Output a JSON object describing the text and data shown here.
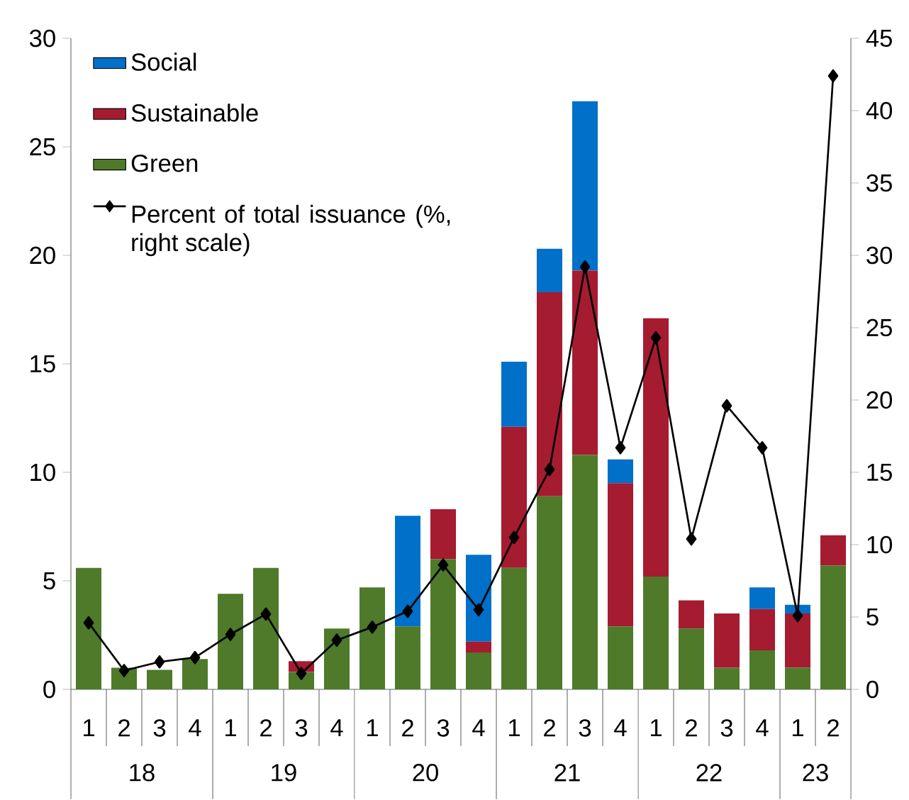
{
  "chart_data": {
    "type": "bar",
    "stacked": true,
    "legend": "top left",
    "marker": "diamond",
    "line_style": "solid",
    "categories": [
      "1",
      "2",
      "3",
      "4",
      "1",
      "2",
      "3",
      "4",
      "1",
      "2",
      "3",
      "4",
      "1",
      "2",
      "3",
      "4",
      "1",
      "2",
      "3",
      "4",
      "1",
      "2"
    ],
    "annotations": [
      "18",
      "19",
      "20",
      "21",
      "22",
      "23"
    ],
    "ylim": [
      0,
      30
    ],
    "yticks": [
      0,
      5,
      10,
      15,
      20,
      25,
      30
    ],
    "y2lim": [
      0,
      45
    ],
    "y2ticks": [
      0,
      5,
      10,
      15,
      20,
      25,
      30,
      35,
      40,
      45
    ],
    "series": [
      {
        "name": "Green",
        "color": "#4e7a2a",
        "values": [
          5.6,
          1.0,
          0.9,
          1.4,
          4.4,
          5.6,
          0.8,
          2.8,
          4.7,
          2.9,
          6.0,
          1.7,
          5.6,
          8.9,
          10.8,
          2.9,
          5.2,
          2.8,
          1.0,
          1.8,
          1.0,
          5.7
        ]
      },
      {
        "name": "Sustainable",
        "color": "#a51b30",
        "values": [
          0,
          0,
          0,
          0,
          0,
          0,
          0.5,
          0,
          0,
          0,
          2.3,
          0.5,
          6.5,
          9.4,
          8.5,
          6.6,
          11.9,
          1.3,
          2.5,
          1.9,
          2.5,
          1.4
        ]
      },
      {
        "name": "Social",
        "color": "#0070c8",
        "values": [
          0,
          0,
          0,
          0,
          0,
          0,
          0,
          0,
          0,
          5.1,
          0,
          4.0,
          3.0,
          2.0,
          7.8,
          1.1,
          0,
          0,
          0,
          1.0,
          0.4,
          0
        ]
      },
      {
        "name": "Percent of total issuance (%, right scale)",
        "type": "line",
        "axis": "y2",
        "color": "#000000",
        "values": [
          4.6,
          1.3,
          1.9,
          2.2,
          3.8,
          5.2,
          1.1,
          3.4,
          4.3,
          5.4,
          8.6,
          5.5,
          10.5,
          15.2,
          29.2,
          16.7,
          24.3,
          10.4,
          19.6,
          16.7,
          5.1,
          42.4
        ]
      }
    ]
  }
}
